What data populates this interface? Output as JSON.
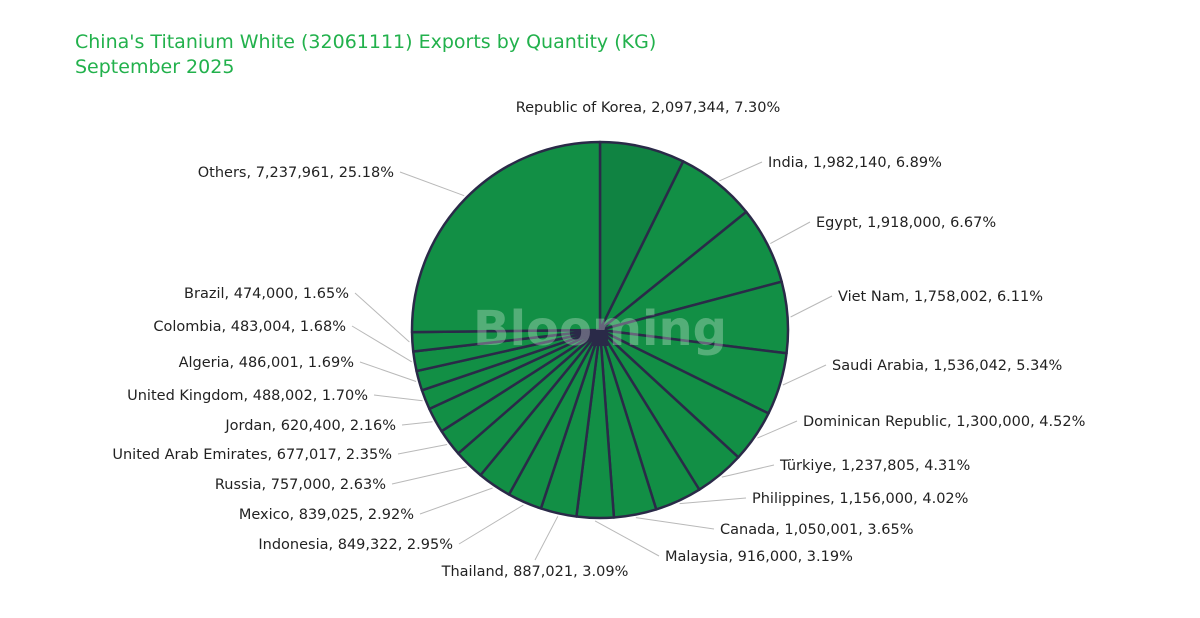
{
  "title": "China's Titanium White (32061111) Exports by Quantity (KG)",
  "subtitle": "September 2025",
  "watermark": "Blooming",
  "colors": {
    "title": "#22b14c",
    "slice_fill": "#128f45",
    "first_slice_fill": "#108342",
    "slice_stroke": "#2a2a48",
    "leader": "#b9b9b9"
  },
  "chart_data": {
    "type": "pie",
    "start_angle_deg": 0,
    "direction": "clockwise",
    "slices": [
      {
        "label": "Republic of Korea",
        "value": 2097344,
        "display_value": "2,097,344",
        "percent": "7.30%"
      },
      {
        "label": "India",
        "value": 1982140,
        "display_value": "1,982,140",
        "percent": "6.89%"
      },
      {
        "label": "Egypt",
        "value": 1918000,
        "display_value": "1,918,000",
        "percent": "6.67%"
      },
      {
        "label": "Viet Nam",
        "value": 1758002,
        "display_value": "1,758,002",
        "percent": "6.11%"
      },
      {
        "label": "Saudi Arabia",
        "value": 1536042,
        "display_value": "1,536,042",
        "percent": "5.34%"
      },
      {
        "label": "Dominican Republic",
        "value": 1300000,
        "display_value": "1,300,000",
        "percent": "4.52%"
      },
      {
        "label": "Türkiye",
        "value": 1237805,
        "display_value": "1,237,805",
        "percent": "4.31%"
      },
      {
        "label": "Philippines",
        "value": 1156000,
        "display_value": "1,156,000",
        "percent": "4.02%"
      },
      {
        "label": "Canada",
        "value": 1050001,
        "display_value": "1,050,001",
        "percent": "3.65%"
      },
      {
        "label": "Malaysia",
        "value": 916000,
        "display_value": "916,000",
        "percent": "3.19%"
      },
      {
        "label": "Thailand",
        "value": 887021,
        "display_value": "887,021",
        "percent": "3.09%"
      },
      {
        "label": "Indonesia",
        "value": 849322,
        "display_value": "849,322",
        "percent": "2.95%"
      },
      {
        "label": "Mexico",
        "value": 839025,
        "display_value": "839,025",
        "percent": "2.92%"
      },
      {
        "label": "Russia",
        "value": 757000,
        "display_value": "757,000",
        "percent": "2.63%"
      },
      {
        "label": "United Arab Emirates",
        "value": 677017,
        "display_value": "677,017",
        "percent": "2.35%"
      },
      {
        "label": "Jordan",
        "value": 620400,
        "display_value": "620,400",
        "percent": "2.16%"
      },
      {
        "label": "United Kingdom",
        "value": 488002,
        "display_value": "488,002",
        "percent": "1.70%"
      },
      {
        "label": "Algeria",
        "value": 486001,
        "display_value": "486,001",
        "percent": "1.69%"
      },
      {
        "label": "Colombia",
        "value": 483004,
        "display_value": "483,004",
        "percent": "1.68%"
      },
      {
        "label": "Brazil",
        "value": 474000,
        "display_value": "474,000",
        "percent": "1.65%"
      },
      {
        "label": "Others",
        "value": 7237961,
        "display_value": "7,237,961",
        "percent": "25.18%"
      }
    ]
  }
}
